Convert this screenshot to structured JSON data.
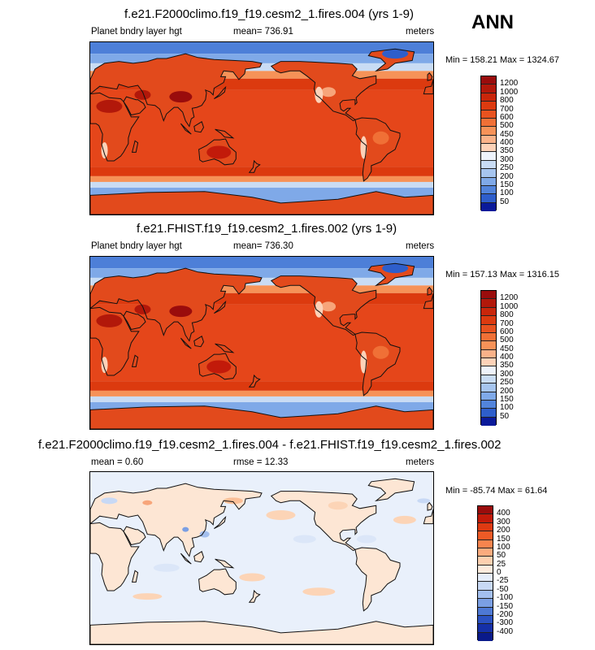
{
  "season_label": "ANN",
  "panels": [
    {
      "title": "f.e21.F2000climo.f19_f19.cesm2_1.fires.004 (yrs 1-9)",
      "left_label": "Planet bndry layer hgt",
      "center_label": "mean= 736.91",
      "right_label": "meters",
      "minmax": "Min = 158.21 Max = 1324.67",
      "colorbar_labels": [
        "1200",
        "1000",
        "800",
        "700",
        "600",
        "500",
        "450",
        "400",
        "350",
        "300",
        "250",
        "200",
        "150",
        "100",
        "50"
      ],
      "colorbar_colors": [
        "#9a0c0c",
        "#b2180a",
        "#c9260a",
        "#dc3a0f",
        "#e8521f",
        "#f07036",
        "#f69258",
        "#fab289",
        "#fdd2b8",
        "#eef3fb",
        "#c9dcf4",
        "#a6c5ef",
        "#7fa9e8",
        "#5284db",
        "#2e5ecb",
        "#0a1a9a"
      ],
      "field": "pblh"
    },
    {
      "title": "f.e21.FHIST.f19_f19.cesm2_1.fires.002 (yrs 1-9)",
      "left_label": "Planet bndry layer hgt",
      "center_label": "mean= 736.30",
      "right_label": "meters",
      "minmax": "Min = 157.13 Max = 1316.15",
      "colorbar_labels": [
        "1200",
        "1000",
        "800",
        "700",
        "600",
        "500",
        "450",
        "400",
        "350",
        "300",
        "250",
        "200",
        "150",
        "100",
        "50"
      ],
      "colorbar_colors": [
        "#9a0c0c",
        "#b2180a",
        "#c9260a",
        "#dc3a0f",
        "#e8521f",
        "#f07036",
        "#f69258",
        "#fab289",
        "#fdd2b8",
        "#eef3fb",
        "#c9dcf4",
        "#a6c5ef",
        "#7fa9e8",
        "#5284db",
        "#2e5ecb",
        "#0a1a9a"
      ],
      "field": "pblh"
    },
    {
      "title": "f.e21.F2000climo.f19_f19.cesm2_1.fires.004 - f.e21.FHIST.f19_f19.cesm2_1.fires.002",
      "left_label": "mean =   0.60",
      "center_label": "rmse =  12.33",
      "right_label": "meters",
      "minmax": "Min = -85.74 Max = 61.64",
      "colorbar_labels": [
        "400",
        "300",
        "200",
        "150",
        "100",
        "50",
        "25",
        "0",
        "-25",
        "-50",
        "-100",
        "-150",
        "-200",
        "-300",
        "-400"
      ],
      "colorbar_colors": [
        "#9a0c0c",
        "#c21a0a",
        "#de3a12",
        "#ee5a26",
        "#f7844e",
        "#fbab7e",
        "#fdd0b0",
        "#fdebdd",
        "#e6eefb",
        "#c8d9f5",
        "#a3bfee",
        "#7b9fe3",
        "#4e79d4",
        "#2b52c2",
        "#1530a8",
        "#0a1a8a"
      ],
      "field": "diff"
    }
  ]
}
